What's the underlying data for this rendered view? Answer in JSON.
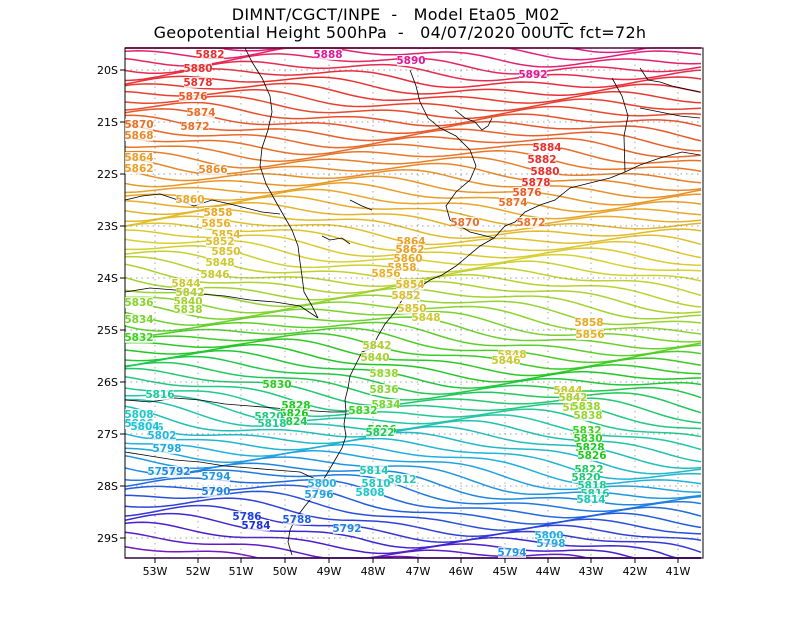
{
  "title": {
    "line1": "DIMNT/CGCT/INPE  -   Model Eta05_M02_",
    "line2": "Geopotential Height 500hPa  -   04/07/2020 00UTC fct=72h"
  },
  "axes": {
    "lon_labels": [
      "53W",
      "52W",
      "51W",
      "50W",
      "49W",
      "48W",
      "47W",
      "46W",
      "45W",
      "44W",
      "43W",
      "42W",
      "41W"
    ],
    "lat_labels": [
      "20S",
      "21S",
      "22S",
      "23S",
      "24S",
      "25S",
      "26S",
      "27S",
      "28S",
      "29S"
    ]
  },
  "contour_labels": [
    {
      "text": "5892",
      "color": "#e0189a"
    },
    {
      "text": "5890",
      "color": "#e0189a"
    },
    {
      "text": "5888",
      "color": "#e0189a"
    },
    {
      "text": "5884",
      "color": "#e83030"
    },
    {
      "text": "5882",
      "color": "#e83030"
    },
    {
      "text": "5882",
      "color": "#e83030"
    },
    {
      "text": "5880",
      "color": "#e83030"
    },
    {
      "text": "5880",
      "color": "#e83030"
    },
    {
      "text": "5878",
      "color": "#e83030"
    },
    {
      "text": "5878",
      "color": "#e83030"
    },
    {
      "text": "5876",
      "color": "#e85a28"
    },
    {
      "text": "5876",
      "color": "#e85a28"
    },
    {
      "text": "5874",
      "color": "#e87028"
    },
    {
      "text": "5874",
      "color": "#e87028"
    },
    {
      "text": "5872",
      "color": "#e87028"
    },
    {
      "text": "5872",
      "color": "#e87028"
    },
    {
      "text": "5870",
      "color": "#e87028"
    },
    {
      "text": "5870",
      "color": "#e87028"
    },
    {
      "text": "5868",
      "color": "#e88a28"
    },
    {
      "text": "5866",
      "color": "#e88a28"
    },
    {
      "text": "5864",
      "color": "#e8a028"
    },
    {
      "text": "5864",
      "color": "#e8a028"
    },
    {
      "text": "5862",
      "color": "#e8a028"
    },
    {
      "text": "5862",
      "color": "#e8a028"
    },
    {
      "text": "5860",
      "color": "#e8a828"
    },
    {
      "text": "5860",
      "color": "#e8a828"
    },
    {
      "text": "5858",
      "color": "#e8a828"
    },
    {
      "text": "5858",
      "color": "#e8a828"
    },
    {
      "text": "5858",
      "color": "#e8a828"
    },
    {
      "text": "5856",
      "color": "#e8b028"
    },
    {
      "text": "5856",
      "color": "#e8b028"
    },
    {
      "text": "5856",
      "color": "#e8b028"
    },
    {
      "text": "5854",
      "color": "#e0b830"
    },
    {
      "text": "5854",
      "color": "#e0b830"
    },
    {
      "text": "5852",
      "color": "#d8c030"
    },
    {
      "text": "5852",
      "color": "#d8c030"
    },
    {
      "text": "5850",
      "color": "#d8c030"
    },
    {
      "text": "5850",
      "color": "#d8c030"
    },
    {
      "text": "5848",
      "color": "#d0c830"
    },
    {
      "text": "5848",
      "color": "#d0c830"
    },
    {
      "text": "5848",
      "color": "#d0c830"
    },
    {
      "text": "5846",
      "color": "#c8c830"
    },
    {
      "text": "5846",
      "color": "#c8c830"
    },
    {
      "text": "5844",
      "color": "#c8c830"
    },
    {
      "text": "5844",
      "color": "#c8c830"
    },
    {
      "text": "5842",
      "color": "#b4cc30"
    },
    {
      "text": "5842",
      "color": "#b4cc30"
    },
    {
      "text": "5842",
      "color": "#b4cc30"
    },
    {
      "text": "5840",
      "color": "#a8d030"
    },
    {
      "text": "5840",
      "color": "#a8d030"
    },
    {
      "text": "5840",
      "color": "#a8d030"
    },
    {
      "text": "5838",
      "color": "#98d430"
    },
    {
      "text": "5838",
      "color": "#98d430"
    },
    {
      "text": "5838",
      "color": "#98d430"
    },
    {
      "text": "5838",
      "color": "#98d430"
    },
    {
      "text": "5836",
      "color": "#88d430"
    },
    {
      "text": "5836",
      "color": "#88d430"
    },
    {
      "text": "5834",
      "color": "#78d430"
    },
    {
      "text": "5834",
      "color": "#78d430"
    },
    {
      "text": "5832",
      "color": "#40d020"
    },
    {
      "text": "5832",
      "color": "#40d020"
    },
    {
      "text": "5832",
      "color": "#40d020"
    },
    {
      "text": "5830",
      "color": "#30cc20"
    },
    {
      "text": "5830",
      "color": "#30cc20"
    },
    {
      "text": "5828",
      "color": "#20c820"
    },
    {
      "text": "5828",
      "color": "#20c820"
    },
    {
      "text": "5826",
      "color": "#20c820"
    },
    {
      "text": "5826",
      "color": "#20c820"
    },
    {
      "text": "5826",
      "color": "#20c820"
    },
    {
      "text": "5824",
      "color": "#20c848"
    },
    {
      "text": "5822",
      "color": "#20c860"
    },
    {
      "text": "5822",
      "color": "#20c860"
    },
    {
      "text": "5820",
      "color": "#20c878"
    },
    {
      "text": "5820",
      "color": "#20c878"
    },
    {
      "text": "5818",
      "color": "#20c890"
    },
    {
      "text": "5818",
      "color": "#20c890"
    },
    {
      "text": "5816",
      "color": "#20c8a0"
    },
    {
      "text": "5816",
      "color": "#20c8a0"
    },
    {
      "text": "5814",
      "color": "#20c8b0"
    },
    {
      "text": "5814",
      "color": "#20c8b0"
    },
    {
      "text": "5812",
      "color": "#20c8b8"
    },
    {
      "text": "5810",
      "color": "#20c8c0"
    },
    {
      "text": "5808",
      "color": "#20c8c8"
    },
    {
      "text": "5808",
      "color": "#20c8c8"
    },
    {
      "text": "5806",
      "color": "#20c4d0"
    },
    {
      "text": "5806",
      "color": "#20c4d0"
    },
    {
      "text": "5804",
      "color": "#20c0d8"
    },
    {
      "text": "5802",
      "color": "#20b8e0"
    },
    {
      "text": "5800",
      "color": "#20b0e0"
    },
    {
      "text": "5800",
      "color": "#20b0e0"
    },
    {
      "text": "5798",
      "color": "#20a8e0"
    },
    {
      "text": "5798",
      "color": "#20a8e0"
    },
    {
      "text": "5796",
      "color": "#20a0e0"
    },
    {
      "text": "5796",
      "color": "#20a0e0"
    },
    {
      "text": "5794",
      "color": "#2098e0"
    },
    {
      "text": "5794",
      "color": "#2098e0"
    },
    {
      "text": "5792",
      "color": "#2088e0"
    },
    {
      "text": "5792",
      "color": "#2088e0"
    },
    {
      "text": "5790",
      "color": "#2080e0"
    },
    {
      "text": "5788",
      "color": "#2060e0"
    },
    {
      "text": "5786",
      "color": "#2040d8"
    },
    {
      "text": "5784",
      "color": "#2030d0"
    }
  ],
  "colors": {
    "magenta": "#e0189a",
    "red": "#e83030",
    "orange": "#e8a028",
    "yellow": "#d8d030",
    "green": "#20c820",
    "cyan": "#20c8c8",
    "blue": "#2060e0",
    "violet": "#8020c0"
  }
}
